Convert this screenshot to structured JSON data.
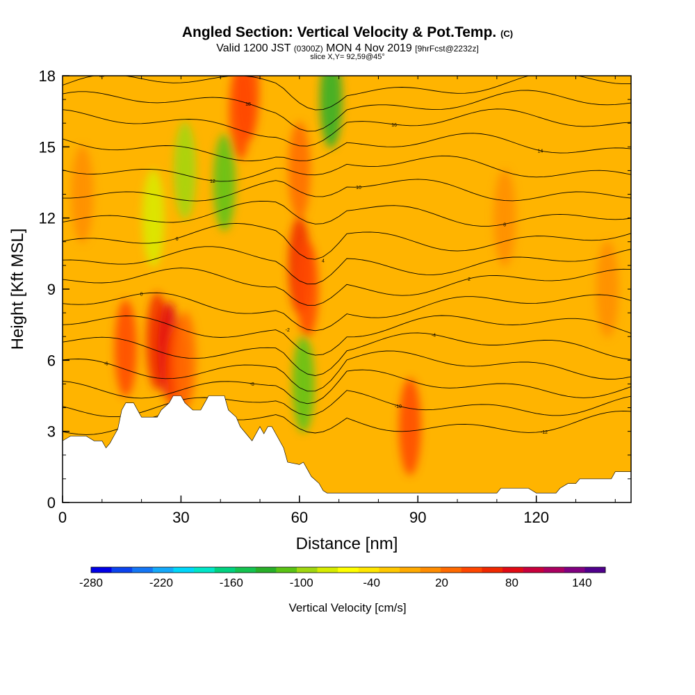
{
  "title": {
    "main": "Angled Section: Vertical Velocity & Pot.Temp.",
    "main_unit": "(C)",
    "valid_prefix": "Valid 1200 JST",
    "valid_utc": "(0300Z)",
    "valid_date": "MON 4 Nov 2019",
    "forecast": "[9hrFcst@2232z]",
    "slice": "slice X,Y= 92,59@45°"
  },
  "chart_data": {
    "type": "heatmap",
    "xlabel": "Distance [nm]",
    "ylabel": "Height [Kft MSL]",
    "xlim": [
      0,
      144
    ],
    "ylim": [
      0,
      18
    ],
    "x_ticks": [
      0,
      30,
      60,
      90,
      120
    ],
    "y_ticks": [
      0,
      3,
      6,
      9,
      12,
      15,
      18
    ],
    "terrain_profile": [
      [
        0,
        2.6
      ],
      [
        2,
        2.8
      ],
      [
        6,
        2.8
      ],
      [
        8,
        2.6
      ],
      [
        10,
        2.6
      ],
      [
        11,
        2.3
      ],
      [
        12,
        2.5
      ],
      [
        13,
        2.8
      ],
      [
        14,
        3.1
      ],
      [
        14.5,
        3.5
      ],
      [
        15,
        3.9
      ],
      [
        16,
        4.2
      ],
      [
        18,
        4.2
      ],
      [
        19,
        3.9
      ],
      [
        20,
        3.6
      ],
      [
        24,
        3.6
      ],
      [
        25,
        3.9
      ],
      [
        27,
        4.2
      ],
      [
        28,
        4.5
      ],
      [
        30,
        4.5
      ],
      [
        31,
        4.2
      ],
      [
        33,
        3.9
      ],
      [
        35,
        3.9
      ],
      [
        36,
        4.2
      ],
      [
        37,
        4.5
      ],
      [
        41,
        4.5
      ],
      [
        42,
        3.9
      ],
      [
        44,
        3.6
      ],
      [
        45,
        3.2
      ],
      [
        47,
        2.8
      ],
      [
        48,
        2.6
      ],
      [
        49,
        2.9
      ],
      [
        50,
        3.2
      ],
      [
        51,
        2.9
      ],
      [
        52,
        3.2
      ],
      [
        53,
        3.2
      ],
      [
        54,
        2.9
      ],
      [
        56,
        2.3
      ],
      [
        57,
        1.7
      ],
      [
        60,
        1.6
      ],
      [
        61,
        1.7
      ],
      [
        62,
        1.4
      ],
      [
        63,
        1.1
      ],
      [
        65,
        0.8
      ],
      [
        66,
        0.5
      ],
      [
        67,
        0.4
      ],
      [
        80,
        0.4
      ],
      [
        90,
        0.4
      ],
      [
        110,
        0.4
      ],
      [
        111,
        0.6
      ],
      [
        118,
        0.6
      ],
      [
        120,
        0.4
      ],
      [
        125,
        0.4
      ],
      [
        126,
        0.6
      ],
      [
        128,
        0.8
      ],
      [
        130,
        0.8
      ],
      [
        131,
        1.0
      ],
      [
        139,
        1.0
      ],
      [
        140,
        1.3
      ],
      [
        144,
        1.3
      ]
    ],
    "velocity_cells": [
      {
        "x": 5,
        "y": 13,
        "value": 40
      },
      {
        "x": 16,
        "y": 6.5,
        "value": 80
      },
      {
        "x": 24,
        "y": 6.8,
        "value": 100
      },
      {
        "x": 27,
        "y": 6.4,
        "value": 130
      },
      {
        "x": 29,
        "y": 5.5,
        "value": 80
      },
      {
        "x": 31,
        "y": 6.0,
        "value": 60
      },
      {
        "x": 23,
        "y": 12,
        "value": -60
      },
      {
        "x": 31,
        "y": 14,
        "value": -80
      },
      {
        "x": 41,
        "y": 13.5,
        "value": -100
      },
      {
        "x": 45,
        "y": 16.5,
        "value": 80
      },
      {
        "x": 47,
        "y": 17.3,
        "value": 90
      },
      {
        "x": 60,
        "y": 10,
        "value": 100
      },
      {
        "x": 60,
        "y": 14,
        "value": 70
      },
      {
        "x": 62,
        "y": 9,
        "value": 80
      },
      {
        "x": 68,
        "y": 17,
        "value": -110
      },
      {
        "x": 61,
        "y": 5,
        "value": -90
      },
      {
        "x": 88,
        "y": 3.2,
        "value": 80
      },
      {
        "x": 112,
        "y": 12,
        "value": 40
      },
      {
        "x": 138,
        "y": 9,
        "value": 50
      }
    ],
    "isentrope_labels": [
      "20",
      "18",
      "16",
      "14",
      "12",
      "10",
      "8",
      "6",
      "4",
      "2",
      "0",
      "-2",
      "-4",
      "-6",
      "-8",
      "-10",
      "-12"
    ],
    "isentrope_heights": [
      17.6,
      16.8,
      16.0,
      15.0,
      14.1,
      13.2,
      12.2,
      11.2,
      10.2,
      9.3,
      8.3,
      7.4,
      6.6,
      5.8,
      5.0,
      4.2,
      3.4
    ],
    "colorbar": {
      "title": "Vertical Velocity [cm/s]",
      "range": [
        -280,
        160
      ],
      "step": 20,
      "tick_labels": [
        "-280",
        "-220",
        "-160",
        "-100",
        "-40",
        "20",
        "80",
        "140"
      ],
      "tick_values": [
        -280,
        -220,
        -160,
        -100,
        -40,
        20,
        80,
        140
      ],
      "colors": [
        "#0000e6",
        "#0b43ee",
        "#1476f5",
        "#14a9fa",
        "#00d7fa",
        "#00e6c8",
        "#00d280",
        "#14c350",
        "#28af28",
        "#5ac314",
        "#a0d710",
        "#d7ec00",
        "#ffff00",
        "#ffe600",
        "#ffc800",
        "#ffaa00",
        "#ff8c00",
        "#ff6a00",
        "#ff4600",
        "#f02800",
        "#e10a14",
        "#c8003c",
        "#aa0060",
        "#800080",
        "#50008c"
      ]
    }
  }
}
